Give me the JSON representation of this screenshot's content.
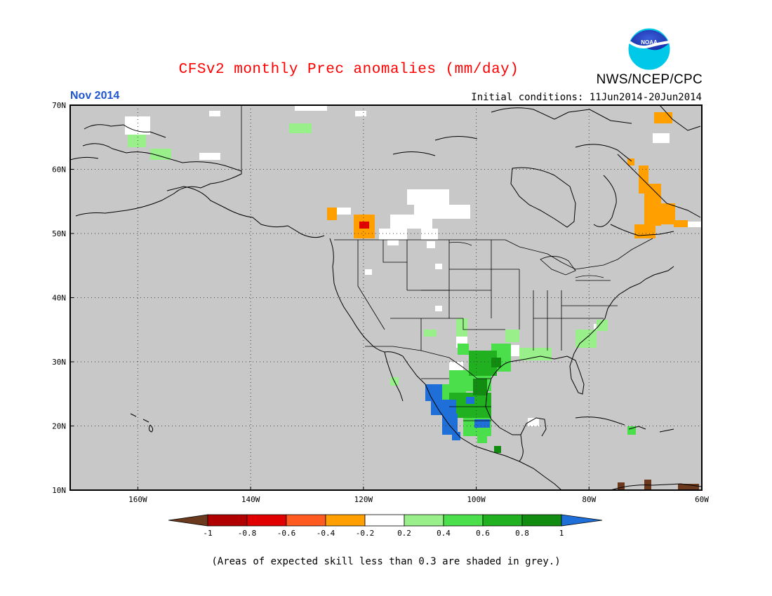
{
  "header": {
    "title": "CFSv2 monthly Prec anomalies (mm/day)",
    "agency": "NWS/NCEP/CPC",
    "logo_text": "NOAA",
    "valid_month": "Nov 2014",
    "initial_conditions": "Initial conditions: 11Jun2014-20Jun2014"
  },
  "map": {
    "projection": "lat-lon",
    "lon_range": [
      -172,
      -60
    ],
    "lat_range": [
      10,
      70
    ],
    "lat_labels": [
      "70N",
      "60N",
      "50N",
      "40N",
      "30N",
      "20N",
      "10N"
    ],
    "lon_labels": [
      "160W",
      "140W",
      "120W",
      "100W",
      "80W",
      "60W"
    ],
    "background_color": "#c8c8c8",
    "grid": "dotted"
  },
  "colorbar": {
    "labels": [
      "-1",
      "-0.8",
      "-0.6",
      "-0.4",
      "-0.2",
      "0.2",
      "0.4",
      "0.6",
      "0.8",
      "1"
    ],
    "colors": [
      "#6b3a1e",
      "#b00000",
      "#e00000",
      "#ff5a1f",
      "#ffa000",
      "#ffffff",
      "#99f08a",
      "#4be04b",
      "#20b020",
      "#118c11",
      "#1f6fd9"
    ]
  },
  "footnote": "(Areas of expected skill less than 0.3 are shaded in grey.)"
}
